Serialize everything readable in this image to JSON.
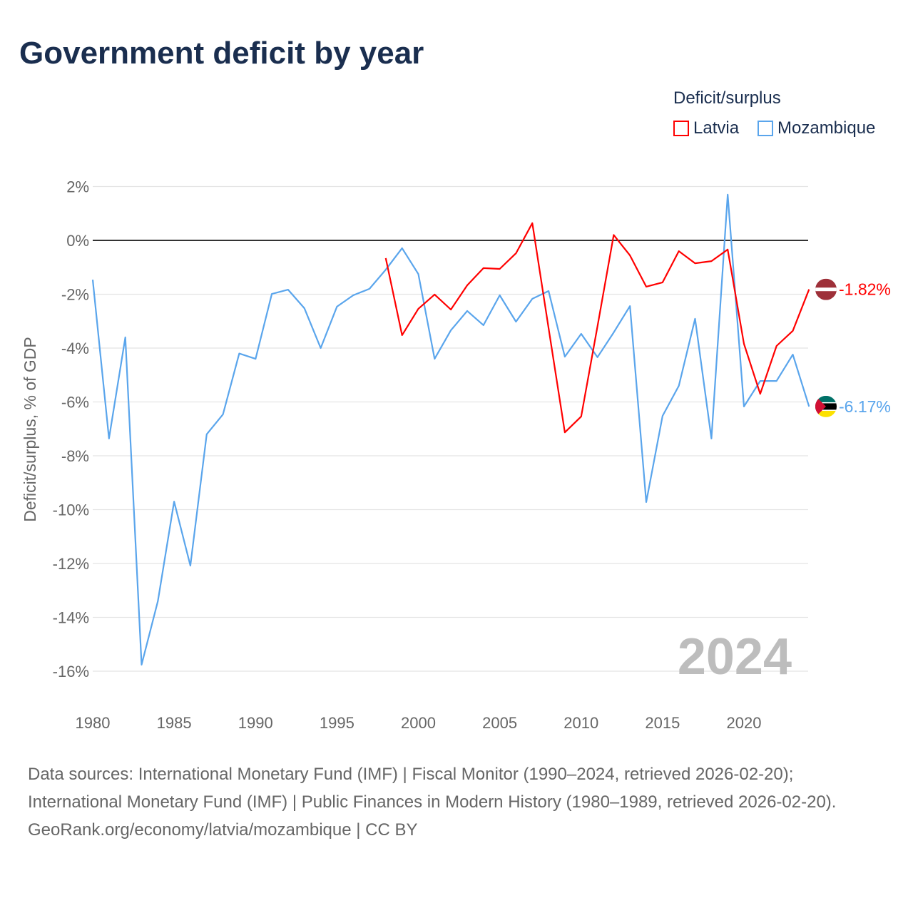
{
  "title": "Government deficit by year",
  "legend": {
    "title": "Deficit/surplus",
    "items": [
      {
        "label": "Latvia",
        "color": "#ff0000"
      },
      {
        "label": "Mozambique",
        "color": "#5aa5ec"
      }
    ]
  },
  "year_label": "2024",
  "footer": {
    "sources": "Data sources: International Monetary Fund (IMF) | Fiscal Monitor (1990–2024, retrieved 2026-02-20); International Monetary Fund (IMF) | Public Finances in Modern History (1980–1989, retrieved 2026-02-20).",
    "credit": "GeoRank.org/economy/latvia/mozambique | CC BY"
  },
  "chart_data": {
    "type": "line",
    "title": "Government deficit by year",
    "xlabel": "",
    "ylabel": "Deficit/surplus, % of GDP",
    "xlim": [
      1980,
      2024
    ],
    "ylim": [
      -17,
      2.5
    ],
    "xticks": [
      1980,
      1985,
      1990,
      1995,
      2000,
      2005,
      2010,
      2015,
      2020
    ],
    "yticks": [
      2,
      0,
      -2,
      -4,
      -6,
      -8,
      -10,
      -12,
      -14,
      -16
    ],
    "ytick_labels": [
      "2%",
      "0%",
      "-2%",
      "-4%",
      "-6%",
      "-8%",
      "-10%",
      "-12%",
      "-14%",
      "-16%"
    ],
    "grid": true,
    "legend_position": "top-right",
    "series": [
      {
        "name": "Latvia",
        "color": "#ff0000",
        "end_label": "-1.82%",
        "start_year": 1998,
        "values": [
          -0.66,
          -3.52,
          -2.54,
          -2.01,
          -2.57,
          -1.67,
          -1.03,
          -1.06,
          -0.48,
          0.64,
          -3.26,
          -7.13,
          -6.54,
          -3.2,
          0.2,
          -0.56,
          -1.72,
          -1.56,
          -0.4,
          -0.85,
          -0.77,
          -0.34,
          -3.84,
          -5.7,
          -3.92,
          -3.36,
          -1.82
        ]
      },
      {
        "name": "Mozambique",
        "color": "#5aa5ec",
        "end_label": "-6.17%",
        "start_year": 1980,
        "values": [
          -1.46,
          -7.36,
          -3.6,
          -15.76,
          -13.4,
          -9.7,
          -12.08,
          -7.2,
          -6.46,
          -4.2,
          -4.4,
          -1.99,
          -1.83,
          -2.52,
          -4.0,
          -2.46,
          -2.04,
          -1.8,
          -1.09,
          -0.29,
          -1.25,
          -4.4,
          -3.34,
          -2.62,
          -3.15,
          -2.04,
          -3.02,
          -2.17,
          -1.88,
          -4.32,
          -3.47,
          -4.34,
          -3.42,
          -2.44,
          -9.72,
          -6.52,
          -5.4,
          -2.91,
          -7.36,
          1.7,
          -6.17,
          -5.22,
          -5.22,
          -4.24,
          -6.17
        ]
      }
    ]
  }
}
